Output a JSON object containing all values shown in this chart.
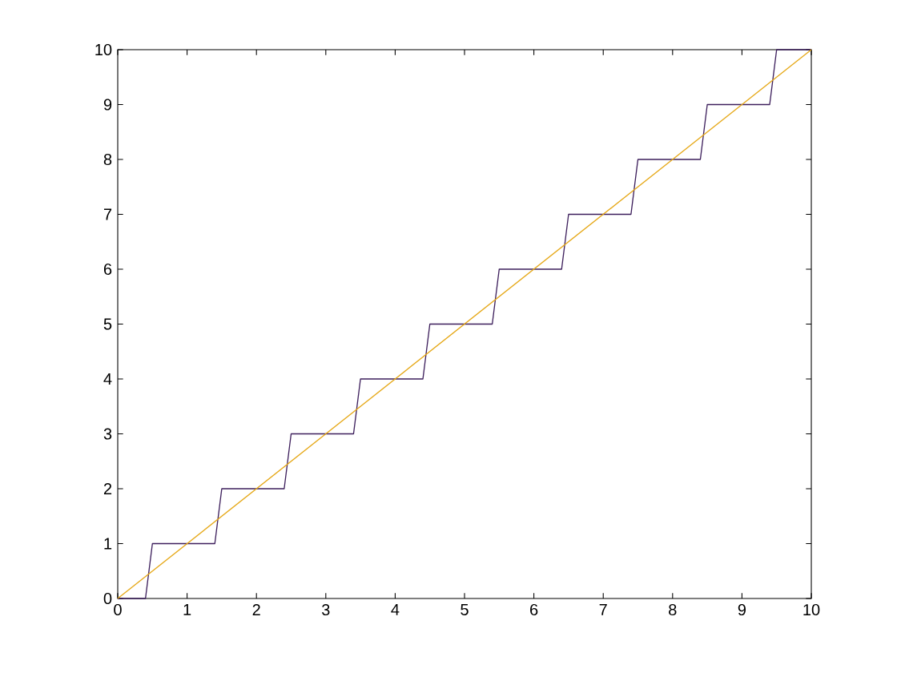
{
  "chart_data": {
    "type": "line",
    "xlim": [
      0,
      10
    ],
    "ylim": [
      0,
      10
    ],
    "xticks": [
      0,
      1,
      2,
      3,
      4,
      5,
      6,
      7,
      8,
      9,
      10
    ],
    "yticks": [
      0,
      1,
      2,
      3,
      4,
      5,
      6,
      7,
      8,
      9,
      10
    ],
    "grid": false,
    "marker": "none",
    "line_style": "solid",
    "series": [
      {
        "color": "#3d1f5c",
        "x": [
          0,
          0.4,
          0.5,
          1.4,
          1.5,
          2.4,
          2.5,
          3.4,
          3.5,
          4.4,
          4.5,
          5.4,
          5.5,
          6.4,
          6.5,
          7.4,
          7.5,
          8.4,
          8.5,
          9.4,
          9.5,
          10
        ],
        "values": [
          0,
          0,
          1,
          1,
          2,
          2,
          3,
          3,
          4,
          4,
          5,
          5,
          6,
          6,
          7,
          7,
          8,
          8,
          9,
          9,
          10,
          10
        ]
      },
      {
        "color": "#e6a817",
        "x": [
          0,
          10
        ],
        "values": [
          0,
          10
        ]
      }
    ]
  }
}
